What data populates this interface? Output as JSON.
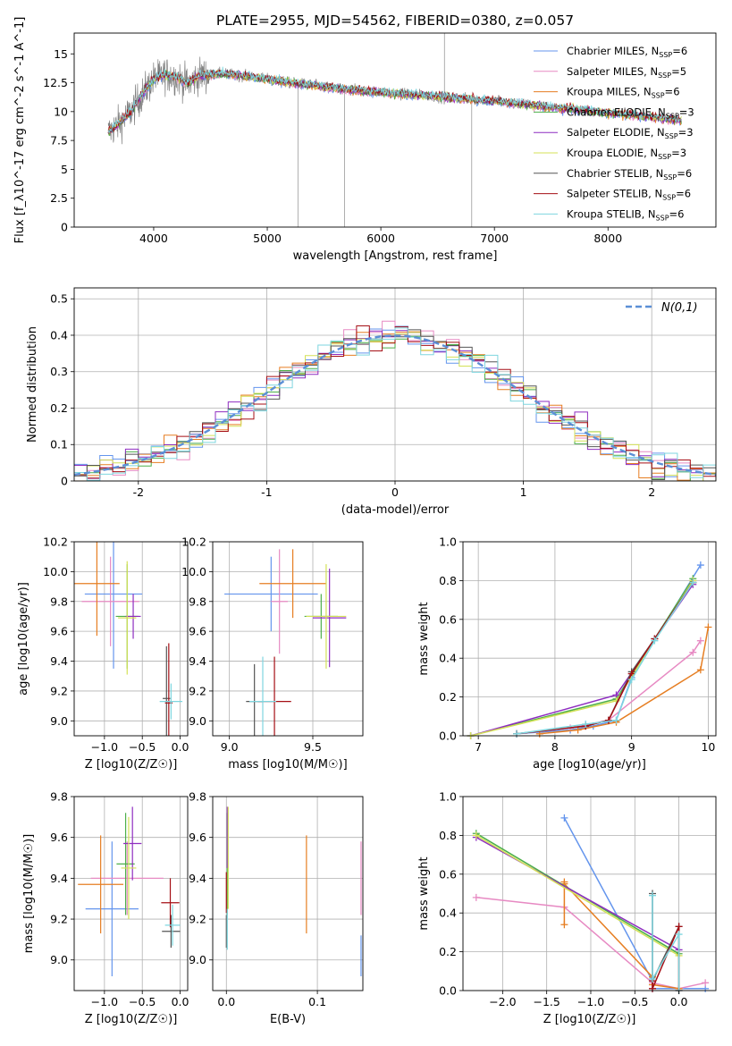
{
  "colors": {
    "Chabrier MILES": "#6495ed",
    "Salpeter MILES": "#e78ac3",
    "Kroupa MILES": "#e67e22",
    "Chabrier ELODIE": "#4daf4a",
    "Salpeter ELODIE": "#8e2dc0",
    "Kroupa ELODIE": "#d4e157",
    "Chabrier STELIB": "#555555",
    "Salpeter STELIB": "#a50f15",
    "Kroupa STELIB": "#7ed6df",
    "data": "#808080"
  },
  "chart_data": [
    {
      "id": "spectrum",
      "type": "line",
      "title": "PLATE=2955, MJD=54562, FIBERID=0380, z=0.057",
      "xlabel": "wavelength [Angstrom, rest frame]",
      "ylabel": "Flux [f_λ10^-17 erg cm^-2 s^-1 A^-1]",
      "xlim": [
        3300,
        8950
      ],
      "ylim": [
        0,
        16.8
      ],
      "xticks": [
        4000,
        5000,
        6000,
        7000,
        8000
      ],
      "yticks": [
        0.0,
        2.5,
        5.0,
        7.5,
        10.0,
        12.5,
        15.0
      ],
      "grid": false,
      "legend_position": "top-right",
      "legend": [
        {
          "model": "Chabrier MILES",
          "nssp": "6"
        },
        {
          "model": "Salpeter MILES",
          "nssp": "5"
        },
        {
          "model": "Kroupa MILES",
          "nssp": "6"
        },
        {
          "model": "Chabrier ELODIE",
          "nssp": "3"
        },
        {
          "model": "Salpeter ELODIE",
          "nssp": "3"
        },
        {
          "model": "Kroupa ELODIE",
          "nssp": "3"
        },
        {
          "model": "Chabrier STELIB",
          "nssp": "6"
        },
        {
          "model": "Salpeter STELIB",
          "nssp": "6"
        },
        {
          "model": "Kroupa STELIB",
          "nssp": "6"
        }
      ],
      "continuum": {
        "x": [
          3600,
          3700,
          3800,
          3900,
          4000,
          4100,
          4200,
          4300,
          4400,
          4600,
          4800,
          5000,
          5200,
          5400,
          5600,
          5800,
          6000,
          6200,
          6400,
          6600,
          6800,
          7000,
          7200,
          7400,
          7600,
          7800,
          8000,
          8200,
          8400,
          8600,
          8800
        ],
        "y": [
          8.2,
          9.0,
          10.0,
          11.5,
          12.8,
          13.2,
          13.0,
          12.4,
          13.1,
          13.3,
          13.1,
          12.8,
          12.5,
          12.3,
          12.0,
          11.8,
          11.7,
          11.5,
          11.4,
          11.2,
          11.1,
          10.9,
          10.7,
          10.5,
          10.3,
          10.1,
          9.9,
          9.7,
          9.5,
          9.3,
          9.2
        ]
      },
      "model_range": [
        3600,
        8650
      ],
      "data_range": [
        3600,
        7450
      ]
    },
    {
      "id": "residuals",
      "type": "bar",
      "xlabel": "(data-model)/error",
      "ylabel": "Normed distribution",
      "xlim": [
        -2.5,
        2.5
      ],
      "ylim": [
        0,
        0.53
      ],
      "xticks": [
        -2,
        -1,
        0,
        1,
        2
      ],
      "yticks": [
        0.0,
        0.1,
        0.2,
        0.3,
        0.4,
        0.5
      ],
      "grid": true,
      "bin_width": 0.1,
      "reference": {
        "label": "N(0,1)",
        "mean": 0,
        "sigma": 1
      },
      "legend_position": "top-right"
    },
    {
      "id": "z-age",
      "type": "scatter",
      "xlabel": "Z [log10(Z/Z☉)]",
      "ylabel": "age  [log10(age/yr)]",
      "xlim": [
        -1.4,
        0.1
      ],
      "ylim": [
        8.9,
        10.2
      ],
      "xticks": [
        -1.0,
        -0.5,
        0.0
      ],
      "xticklabels": [
        "−1.0",
        "−0.5",
        "0.0"
      ],
      "yticks": [
        9.0,
        9.2,
        9.4,
        9.6,
        9.8,
        10.0,
        10.2
      ],
      "yticklabels": [
        "9.0",
        "9.2",
        "9.4",
        "9.6",
        "9.8",
        "10.0",
        "10.2"
      ],
      "grid": true,
      "points": [
        {
          "model": "Chabrier MILES",
          "x": -0.88,
          "xerr": 0.38,
          "y": 9.85,
          "yerr": 0.5
        },
        {
          "model": "Salpeter MILES",
          "x": -0.92,
          "xerr": 0.38,
          "y": 9.8,
          "yerr": 0.3
        },
        {
          "model": "Kroupa MILES",
          "x": -1.1,
          "xerr": 0.3,
          "y": 9.92,
          "yerr": 0.35
        },
        {
          "model": "Chabrier ELODIE",
          "x": -0.7,
          "xerr": 0.15,
          "y": 9.7,
          "yerr": 0.35
        },
        {
          "model": "Salpeter ELODIE",
          "x": -0.62,
          "xerr": 0.1,
          "y": 9.7,
          "yerr": 0.15
        },
        {
          "model": "Kroupa ELODIE",
          "x": -0.7,
          "xerr": 0.12,
          "y": 9.69,
          "yerr": 0.38
        },
        {
          "model": "Chabrier STELIB",
          "x": -0.18,
          "xerr": 0.05,
          "y": 9.15,
          "yerr": 0.35
        },
        {
          "model": "Salpeter STELIB",
          "x": -0.15,
          "xerr": 0.05,
          "y": 9.12,
          "yerr": 0.4
        },
        {
          "model": "Kroupa STELIB",
          "x": -0.12,
          "xerr": 0.15,
          "y": 9.13,
          "yerr": 0.12
        }
      ]
    },
    {
      "id": "mass-age",
      "type": "scatter",
      "xlabel": "mass [log10(M/M☉)]",
      "ylabel": "",
      "xlim": [
        8.9,
        9.8
      ],
      "ylim": [
        8.9,
        10.2
      ],
      "xticks": [
        9.0,
        9.5
      ],
      "xticklabels": [
        "9.0",
        "9.5"
      ],
      "yticks": [
        9.0,
        9.2,
        9.4,
        9.6,
        9.8,
        10.0,
        10.2
      ],
      "yticklabels": [
        "9.0",
        "9.2",
        "9.4",
        "9.6",
        "9.8",
        "10.0",
        "10.2"
      ],
      "grid": true,
      "points": [
        {
          "model": "Chabrier MILES",
          "x": 9.25,
          "xerr": 0.28,
          "y": 9.85,
          "yerr": 0.25
        },
        {
          "model": "Salpeter MILES",
          "x": 9.3,
          "xerr": 0.05,
          "y": 9.8,
          "yerr": 0.35
        },
        {
          "model": "Kroupa MILES",
          "x": 9.38,
          "xerr": 0.2,
          "y": 9.92,
          "yerr": 0.23
        },
        {
          "model": "Chabrier ELODIE",
          "x": 9.55,
          "xerr": 0.1,
          "y": 9.7,
          "yerr": 0.15
        },
        {
          "model": "Salpeter ELODIE",
          "x": 9.6,
          "xerr": 0.1,
          "y": 9.69,
          "yerr": 0.33
        },
        {
          "model": "Kroupa ELODIE",
          "x": 9.58,
          "xerr": 0.12,
          "y": 9.7,
          "yerr": 0.35
        },
        {
          "model": "Chabrier STELIB",
          "x": 9.15,
          "xerr": 0.05,
          "y": 9.13,
          "yerr": 0.25
        },
        {
          "model": "Salpeter STELIB",
          "x": 9.27,
          "xerr": 0.1,
          "y": 9.13,
          "yerr": 0.3
        },
        {
          "model": "Kroupa STELIB",
          "x": 9.2,
          "xerr": 0.08,
          "y": 9.13,
          "yerr": 0.3
        }
      ]
    },
    {
      "id": "age-massweight",
      "type": "line",
      "xlabel": "age  [log10(age/yr)]",
      "ylabel": "mass weight",
      "xlim": [
        6.8,
        10.1
      ],
      "ylim": [
        0,
        1.0
      ],
      "xticks": [
        7,
        8,
        9,
        10
      ],
      "xticklabels": [
        "7",
        "8",
        "9",
        "10"
      ],
      "yticks": [
        0.0,
        0.2,
        0.4,
        0.6,
        0.8,
        1.0
      ],
      "yticklabels": [
        "0.0",
        "0.2",
        "0.4",
        "0.6",
        "0.8",
        "1.0"
      ],
      "grid": true,
      "series": [
        {
          "model": "Chabrier MILES",
          "x": [
            7.5,
            8.2,
            8.5,
            8.8,
            9.0,
            9.9
          ],
          "y": [
            0.01,
            0.03,
            0.05,
            0.08,
            0.3,
            0.88
          ]
        },
        {
          "model": "Salpeter MILES",
          "x": [
            7.5,
            8.2,
            8.7,
            9.8,
            9.9
          ],
          "y": [
            0.01,
            0.04,
            0.08,
            0.43,
            0.49
          ]
        },
        {
          "model": "Kroupa MILES",
          "x": [
            7.8,
            8.3,
            8.8,
            9.9,
            10.0
          ],
          "y": [
            0.01,
            0.03,
            0.07,
            0.34,
            0.56
          ]
        },
        {
          "model": "Chabrier ELODIE",
          "x": [
            6.9,
            8.8,
            9.8
          ],
          "y": [
            0.0,
            0.19,
            0.81
          ]
        },
        {
          "model": "Salpeter ELODIE",
          "x": [
            6.9,
            8.8,
            9.8
          ],
          "y": [
            0.0,
            0.21,
            0.78
          ]
        },
        {
          "model": "Kroupa ELODIE",
          "x": [
            6.9,
            8.8,
            9.8
          ],
          "y": [
            0.0,
            0.18,
            0.8
          ]
        },
        {
          "model": "Chabrier STELIB",
          "x": [
            7.5,
            8.4,
            8.7,
            9.0,
            9.3,
            9.8
          ],
          "y": [
            0.01,
            0.05,
            0.08,
            0.33,
            0.5,
            0.79
          ]
        },
        {
          "model": "Salpeter STELIB",
          "x": [
            7.5,
            8.4,
            8.7,
            9.0,
            9.3,
            9.8
          ],
          "y": [
            0.01,
            0.05,
            0.08,
            0.32,
            0.5,
            0.79
          ]
        },
        {
          "model": "Kroupa STELIB",
          "x": [
            7.5,
            8.4,
            8.8,
            9.0,
            9.3,
            9.8
          ],
          "y": [
            0.01,
            0.06,
            0.08,
            0.29,
            0.49,
            0.79
          ]
        }
      ]
    },
    {
      "id": "z-mass",
      "type": "scatter",
      "xlabel": "Z [log10(Z/Z☉)]",
      "ylabel": "mass [log10(M/M☉)]",
      "xlim": [
        -1.4,
        0.1
      ],
      "ylim": [
        8.85,
        9.8
      ],
      "xticks": [
        -1.0,
        -0.5,
        0.0
      ],
      "xticklabels": [
        "−1.0",
        "−0.5",
        "0.0"
      ],
      "yticks": [
        9.0,
        9.2,
        9.4,
        9.6,
        9.8
      ],
      "yticklabels": [
        "9.0",
        "9.2",
        "9.4",
        "9.6",
        "9.8"
      ],
      "grid": true,
      "points": [
        {
          "model": "Chabrier MILES",
          "x": -0.9,
          "xerr": 0.35,
          "y": 9.25,
          "yerr": 0.33
        },
        {
          "model": "Salpeter MILES",
          "x": -0.7,
          "xerr": 0.48,
          "y": 9.4,
          "yerr": 0.18
        },
        {
          "model": "Kroupa MILES",
          "x": -1.05,
          "xerr": 0.3,
          "y": 9.37,
          "yerr": 0.24
        },
        {
          "model": "Chabrier ELODIE",
          "x": -0.72,
          "xerr": 0.12,
          "y": 9.47,
          "yerr": 0.25
        },
        {
          "model": "Salpeter ELODIE",
          "x": -0.63,
          "xerr": 0.12,
          "y": 9.57,
          "yerr": 0.18
        },
        {
          "model": "Kroupa ELODIE",
          "x": -0.68,
          "xerr": 0.1,
          "y": 9.45,
          "yerr": 0.25
        },
        {
          "model": "Chabrier STELIB",
          "x": -0.12,
          "xerr": 0.12,
          "y": 9.14,
          "yerr": 0.08
        },
        {
          "model": "Salpeter STELIB",
          "x": -0.13,
          "xerr": 0.12,
          "y": 9.28,
          "yerr": 0.12
        },
        {
          "model": "Kroupa STELIB",
          "x": -0.1,
          "xerr": 0.1,
          "y": 9.17,
          "yerr": 0.1
        }
      ]
    },
    {
      "id": "ebv-mass",
      "type": "scatter",
      "xlabel": "E(B-V)",
      "ylabel": "",
      "xlim": [
        -0.015,
        0.15
      ],
      "ylim": [
        8.85,
        9.8
      ],
      "xticks": [
        0.0,
        0.1
      ],
      "xticklabels": [
        "0.0",
        "0.1"
      ],
      "yticks": [
        9.0,
        9.2,
        9.4,
        9.6,
        9.8
      ],
      "yticklabels": [
        "9.0",
        "9.2",
        "9.4",
        "9.6",
        "9.8"
      ],
      "grid": true,
      "points": [
        {
          "model": "Chabrier MILES",
          "x": 0.148,
          "xerr": 0,
          "y": 9.02,
          "yerr": 0.1
        },
        {
          "model": "Salpeter MILES",
          "x": 0.148,
          "xerr": 0,
          "y": 9.4,
          "yerr": 0.18
        },
        {
          "model": "Kroupa MILES",
          "x": 0.088,
          "xerr": 0,
          "y": 9.37,
          "yerr": 0.24
        },
        {
          "model": "Chabrier ELODIE",
          "x": 0.001,
          "xerr": 0,
          "y": 9.47,
          "yerr": 0.25
        },
        {
          "model": "Salpeter ELODIE",
          "x": 0.001,
          "xerr": 0,
          "y": 9.6,
          "yerr": 0.15
        },
        {
          "model": "Kroupa ELODIE",
          "x": 0.002,
          "xerr": 0,
          "y": 9.5,
          "yerr": 0.25
        },
        {
          "model": "Chabrier STELIB",
          "x": 0.0,
          "xerr": 0,
          "y": 9.14,
          "yerr": 0.08
        },
        {
          "model": "Salpeter STELIB",
          "x": 0.0,
          "xerr": 0,
          "y": 9.33,
          "yerr": 0.1
        },
        {
          "model": "Kroupa STELIB",
          "x": 0.001,
          "xerr": 0,
          "y": 9.15,
          "yerr": 0.1
        }
      ]
    },
    {
      "id": "z-massweight",
      "type": "line",
      "xlabel": "Z [log10(Z/Z☉)]",
      "ylabel": "mass weight",
      "xlim": [
        -2.45,
        0.42
      ],
      "ylim": [
        0,
        1.0
      ],
      "xticks": [
        -2.0,
        -1.5,
        -1.0,
        -0.5,
        0.0
      ],
      "xticklabels": [
        "−2.0",
        "−1.5",
        "−1.0",
        "−0.5",
        "0.0"
      ],
      "yticks": [
        0.0,
        0.2,
        0.4,
        0.6,
        0.8,
        1.0
      ],
      "yticklabels": [
        "0.0",
        "0.2",
        "0.4",
        "0.6",
        "0.8",
        "1.0"
      ],
      "grid": true,
      "series": [
        {
          "model": "Chabrier MILES",
          "x": [
            -1.3,
            -0.3,
            -0.3,
            0.0,
            0.3
          ],
          "y": [
            0.89,
            0.05,
            0.01,
            0.01,
            0.01
          ]
        },
        {
          "model": "Salpeter MILES",
          "x": [
            -2.3,
            -1.3,
            -0.3,
            0.0,
            0.0,
            0.3
          ],
          "y": [
            0.48,
            0.43,
            0.04,
            0.01,
            0.01,
            0.04
          ]
        },
        {
          "model": "Kroupa MILES",
          "x": [
            -1.3,
            -1.3,
            -1.3,
            -0.3,
            -0.3,
            0.0
          ],
          "y": [
            0.34,
            0.56,
            0.55,
            0.07,
            0.03,
            0.01
          ]
        },
        {
          "model": "Chabrier ELODIE",
          "x": [
            -2.3,
            0.0
          ],
          "y": [
            0.81,
            0.19
          ]
        },
        {
          "model": "Salpeter ELODIE",
          "x": [
            -2.3,
            0.0
          ],
          "y": [
            0.79,
            0.21
          ]
        },
        {
          "model": "Kroupa ELODIE",
          "x": [
            -2.3,
            0.0
          ],
          "y": [
            0.8,
            0.18
          ]
        },
        {
          "model": "Chabrier STELIB",
          "x": [
            -0.3,
            -0.3,
            0.0,
            0.0
          ],
          "y": [
            0.5,
            0.05,
            0.33,
            0.0
          ]
        },
        {
          "model": "Salpeter STELIB",
          "x": [
            -0.3,
            -0.3,
            0.0,
            0.0
          ],
          "y": [
            0.05,
            0.01,
            0.33,
            0.0
          ]
        },
        {
          "model": "Kroupa STELIB",
          "x": [
            -0.3,
            -0.3,
            0.0,
            0.0
          ],
          "y": [
            0.49,
            0.06,
            0.29,
            0.0
          ]
        }
      ]
    }
  ]
}
